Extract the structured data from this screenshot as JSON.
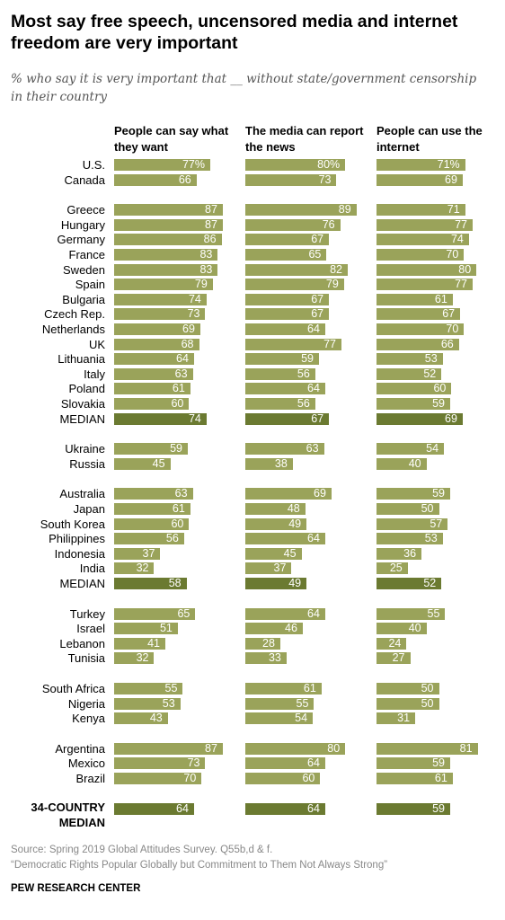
{
  "title": "Most say free speech, uncensored media and internet freedom are very important",
  "subtitle": "% who say it is very important that __ without state/government censorship in their country",
  "chart_data": {
    "type": "bar",
    "orientation": "horizontal",
    "panels": [
      {
        "title": "People can say what they want"
      },
      {
        "title": "The media can report the news"
      },
      {
        "title": "People can use the internet"
      }
    ],
    "rows": [
      {
        "label": "U.S.",
        "values": [
          77,
          80,
          71
        ],
        "pct": true
      },
      {
        "label": "Canada",
        "values": [
          66,
          73,
          69
        ]
      },
      {
        "label": "Greece",
        "values": [
          87,
          89,
          71
        ]
      },
      {
        "label": "Hungary",
        "values": [
          87,
          76,
          77
        ]
      },
      {
        "label": "Germany",
        "values": [
          86,
          67,
          74
        ]
      },
      {
        "label": "France",
        "values": [
          83,
          65,
          70
        ]
      },
      {
        "label": "Sweden",
        "values": [
          83,
          82,
          80
        ]
      },
      {
        "label": "Spain",
        "values": [
          79,
          79,
          77
        ]
      },
      {
        "label": "Bulgaria",
        "values": [
          74,
          67,
          61
        ]
      },
      {
        "label": "Czech Rep.",
        "values": [
          73,
          67,
          67
        ]
      },
      {
        "label": "Netherlands",
        "values": [
          69,
          64,
          70
        ]
      },
      {
        "label": "UK",
        "values": [
          68,
          77,
          66
        ]
      },
      {
        "label": "Lithuania",
        "values": [
          64,
          59,
          53
        ]
      },
      {
        "label": "Italy",
        "values": [
          63,
          56,
          52
        ]
      },
      {
        "label": "Poland",
        "values": [
          61,
          64,
          60
        ]
      },
      {
        "label": "Slovakia",
        "values": [
          60,
          56,
          59
        ]
      },
      {
        "label": "MEDIAN",
        "values": [
          74,
          67,
          69
        ],
        "median": true
      },
      {
        "label": "Ukraine",
        "values": [
          59,
          63,
          54
        ]
      },
      {
        "label": "Russia",
        "values": [
          45,
          38,
          40
        ]
      },
      {
        "label": "Australia",
        "values": [
          63,
          69,
          59
        ]
      },
      {
        "label": "Japan",
        "values": [
          61,
          48,
          50
        ]
      },
      {
        "label": "South Korea",
        "values": [
          60,
          49,
          57
        ]
      },
      {
        "label": "Philippines",
        "values": [
          56,
          64,
          53
        ]
      },
      {
        "label": "Indonesia",
        "values": [
          37,
          45,
          36
        ]
      },
      {
        "label": "India",
        "values": [
          32,
          37,
          25
        ]
      },
      {
        "label": "MEDIAN",
        "values": [
          58,
          49,
          52
        ],
        "median": true
      },
      {
        "label": "Turkey",
        "values": [
          65,
          64,
          55
        ]
      },
      {
        "label": "Israel",
        "values": [
          51,
          46,
          40
        ]
      },
      {
        "label": "Lebanon",
        "values": [
          41,
          28,
          24
        ]
      },
      {
        "label": "Tunisia",
        "values": [
          32,
          33,
          27
        ]
      },
      {
        "label": "South Africa",
        "values": [
          55,
          61,
          50
        ]
      },
      {
        "label": "Nigeria",
        "values": [
          53,
          55,
          50
        ]
      },
      {
        "label": "Kenya",
        "values": [
          43,
          54,
          31
        ]
      },
      {
        "label": "Argentina",
        "values": [
          87,
          80,
          81
        ]
      },
      {
        "label": "Mexico",
        "values": [
          73,
          64,
          59
        ]
      },
      {
        "label": "Brazil",
        "values": [
          70,
          60,
          61
        ]
      },
      {
        "label": "34-COUNTRY MEDIAN",
        "values": [
          64,
          64,
          59
        ],
        "median": true,
        "total": true
      }
    ],
    "colors": {
      "bar": "#9aa35a",
      "median_bar": "#6b7a31",
      "label_text": "#ffffff"
    }
  },
  "footer": {
    "source": "Source: Spring 2019 Global Attitudes Survey. Q55b,d & f.",
    "report": "“Democratic Rights Popular Globally but Commitment to Them Not Always Strong”",
    "brand": "PEW RESEARCH CENTER"
  }
}
